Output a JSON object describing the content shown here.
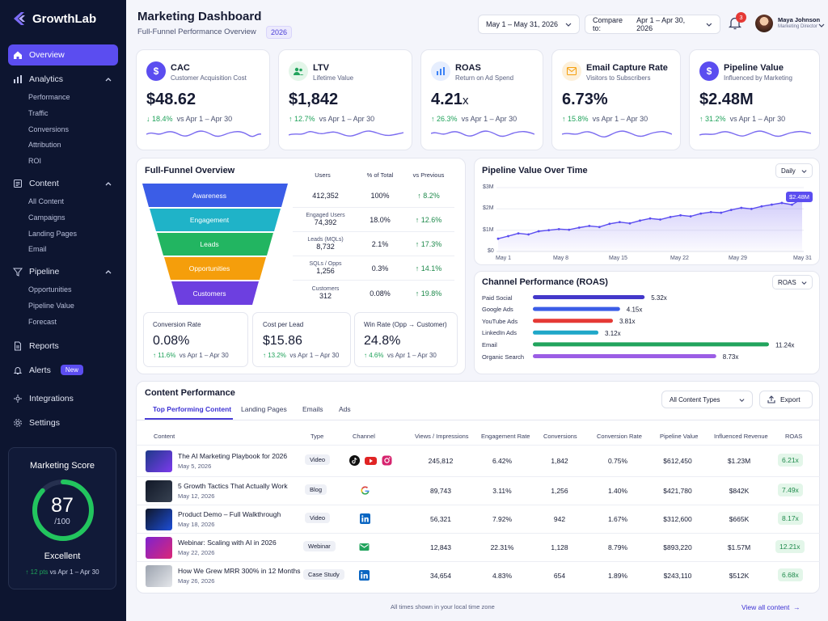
{
  "brand": {
    "name": "GrowthLab",
    "accent": "#5b4df0",
    "sidebar_bg": "#0d1530"
  },
  "sidebar": {
    "overview": "Overview",
    "analytics": {
      "label": "Analytics",
      "items": [
        "Performance",
        "Traffic",
        "Conversions",
        "Attribution",
        "ROI"
      ]
    },
    "content": {
      "label": "Content",
      "items": [
        "All Content",
        "Campaigns",
        "Landing Pages",
        "Email"
      ]
    },
    "pipeline": {
      "label": "Pipeline",
      "items": [
        "Opportunities",
        "Pipeline Value",
        "Forecast"
      ]
    },
    "reports": "Reports",
    "alerts": "Alerts",
    "alerts_badge": "New",
    "integrations": "Integrations",
    "settings": "Settings",
    "score": {
      "title": "Marketing Score",
      "value": "87",
      "denominator": "/100",
      "fraction": 0.87,
      "label": "Excellent",
      "delta": "12 pts",
      "delta_suffix": "vs Apr 1 – Apr 30"
    }
  },
  "header": {
    "title": "Marketing Dashboard",
    "subtitle": "Full-Funnel Performance Overview",
    "year": "2026",
    "date_range": "May 1 – May 31, 2026",
    "compare_label": "Compare to:",
    "compare_range": "Apr 1 – Apr 30, 2026",
    "notifications": "3",
    "user_name": "Maya Johnson",
    "user_role": "Marketing Director"
  },
  "kpis": [
    {
      "title": "CAC",
      "subtitle": "Customer Acquisition Cost",
      "value": "$48.62",
      "delta": "18.4%",
      "compare": "vs Apr 1 – Apr 30",
      "icon": "dollar-icon",
      "color": "#5b4df0"
    },
    {
      "title": "LTV",
      "subtitle": "Lifetime Value",
      "value": "$1,842",
      "delta": "12.7%",
      "compare": "vs Apr 1 – Apr 30",
      "icon": "users-icon",
      "color": "#22a45d"
    },
    {
      "title": "ROAS",
      "subtitle": "Return on Ad Spend",
      "value": "4.21",
      "value_suffix": "x",
      "delta": "26.3%",
      "compare": "vs Apr 1 – Apr 30",
      "icon": "bar-chart-icon",
      "color": "#3b82f6"
    },
    {
      "title": "Email Capture Rate",
      "subtitle": "Visitors to Subscribers",
      "value": "6.73%",
      "delta": "15.8%",
      "compare": "vs Apr 1 – Apr 30",
      "icon": "mail-icon",
      "color": "#f59e0b"
    },
    {
      "title": "Pipeline Value",
      "subtitle": "Influenced by Marketing",
      "value": "$2.48M",
      "delta": "31.2%",
      "compare": "vs Apr 1 – Apr 30",
      "icon": "dollar-icon",
      "color": "#5b4df0"
    }
  ],
  "funnel": {
    "title": "Full-Funnel Overview",
    "columns": [
      "Users",
      "% of Total",
      "vs Previous"
    ],
    "stages": [
      {
        "name": "Awareness",
        "sub": "",
        "users": "412,352",
        "pct": "100%",
        "delta": "8.2%",
        "color": "#3b5de7"
      },
      {
        "name": "Engagement",
        "sub": "Engaged Users",
        "users": "74,392",
        "pct": "18.0%",
        "delta": "12.6%",
        "color": "#1fb3c8"
      },
      {
        "name": "Leads",
        "sub": "Leads (MQLs)",
        "users": "8,732",
        "pct": "2.1%",
        "delta": "17.3%",
        "color": "#22b561"
      },
      {
        "name": "Opportunities",
        "sub": "SQLs / Opps",
        "users": "1,256",
        "pct": "0.3%",
        "delta": "14.1%",
        "color": "#f59e0b"
      },
      {
        "name": "Customers",
        "sub": "Customers",
        "users": "312",
        "pct": "0.08%",
        "delta": "19.8%",
        "color": "#6d3fe0"
      }
    ],
    "metrics": [
      {
        "label": "Conversion Rate",
        "value": "0.08%",
        "delta": "11.6%",
        "compare": "vs Apr 1 – Apr 30"
      },
      {
        "label": "Cost per Lead",
        "value": "$15.86",
        "delta": "13.2%",
        "compare": "vs Apr 1 – Apr 30"
      },
      {
        "label": "Win Rate (Opp → Customer)",
        "value": "24.8%",
        "delta": "4.6%",
        "compare": "vs Apr 1 – Apr 30"
      }
    ]
  },
  "pipeline_chart": {
    "title": "Pipeline Value Over Time",
    "granularity": "Daily",
    "y_ticks": [
      "$3M",
      "$2M",
      "$1M",
      "$0"
    ],
    "x_ticks": [
      "May 1",
      "May 8",
      "May 15",
      "May 22",
      "May 29",
      "May 31"
    ],
    "end_label": "$2.48M"
  },
  "channel_chart": {
    "title": "Channel Performance (ROAS)",
    "metric": "ROAS",
    "channels": [
      {
        "name": "Paid Social",
        "value": 5.32,
        "label": "5.32x",
        "color": "#4338ca"
      },
      {
        "name": "Google Ads",
        "value": 4.15,
        "label": "4.15x",
        "color": "#3b5de7"
      },
      {
        "name": "YouTube Ads",
        "value": 3.81,
        "label": "3.81x",
        "color": "#e53935"
      },
      {
        "name": "LinkedIn Ads",
        "value": 3.12,
        "label": "3.12x",
        "color": "#1fa7c8"
      },
      {
        "name": "Email",
        "value": 11.24,
        "label": "11.24x",
        "color": "#22a45d"
      },
      {
        "name": "Organic Search",
        "value": 8.73,
        "label": "8.73x",
        "color": "#9b5de5"
      }
    ]
  },
  "chart_data": [
    {
      "type": "line",
      "title": "Pipeline Value Over Time",
      "x": [
        "May 1",
        "May 2",
        "May 3",
        "May 4",
        "May 5",
        "May 6",
        "May 7",
        "May 8",
        "May 9",
        "May 10",
        "May 11",
        "May 12",
        "May 13",
        "May 14",
        "May 15",
        "May 16",
        "May 17",
        "May 18",
        "May 19",
        "May 20",
        "May 21",
        "May 22",
        "May 23",
        "May 24",
        "May 25",
        "May 26",
        "May 27",
        "May 28",
        "May 29",
        "May 30",
        "May 31"
      ],
      "values": [
        0.6,
        0.72,
        0.85,
        0.8,
        0.95,
        1.0,
        1.05,
        1.02,
        1.12,
        1.2,
        1.15,
        1.3,
        1.38,
        1.32,
        1.45,
        1.55,
        1.5,
        1.62,
        1.7,
        1.65,
        1.78,
        1.85,
        1.82,
        1.95,
        2.05,
        2.0,
        2.12,
        2.2,
        2.28,
        2.2,
        2.48
      ],
      "ylim": [
        0,
        3
      ],
      "yunit": "$M"
    },
    {
      "type": "bar",
      "title": "Channel Performance (ROAS)",
      "categories": [
        "Paid Social",
        "Google Ads",
        "YouTube Ads",
        "LinkedIn Ads",
        "Email",
        "Organic Search"
      ],
      "values": [
        5.32,
        4.15,
        3.81,
        3.12,
        11.24,
        8.73
      ]
    }
  ],
  "content_table": {
    "title": "Content Performance",
    "tabs": [
      "Top Performing Content",
      "Landing Pages",
      "Emails",
      "Ads"
    ],
    "filter": "All Content Types",
    "export": "Export",
    "headers": [
      "Content",
      "Type",
      "Channel",
      "Views / Impressions",
      "Engagement Rate",
      "Conversions",
      "Conversion Rate",
      "Pipeline Value",
      "Influenced Revenue",
      "ROAS"
    ],
    "rows": [
      {
        "title": "The AI Marketing Playbook for 2026",
        "date": "May 5, 2026",
        "type": "Video",
        "channels": [
          "tiktok-icon",
          "youtube-icon",
          "instagram-icon"
        ],
        "views": "245,812",
        "engagement": "6.42%",
        "conversions": "1,842",
        "conv_rate": "0.75%",
        "pipeline": "$612,450",
        "revenue": "$1.23M",
        "roas": "6.21x"
      },
      {
        "title": "5 Growth Tactics That Actually Work",
        "date": "May 12, 2026",
        "type": "Blog",
        "channels": [
          "google-icon"
        ],
        "views": "89,743",
        "engagement": "3.11%",
        "conversions": "1,256",
        "conv_rate": "1.40%",
        "pipeline": "$421,780",
        "revenue": "$842K",
        "roas": "7.49x"
      },
      {
        "title": "Product Demo – Full Walkthrough",
        "date": "May 18, 2026",
        "type": "Video",
        "channels": [
          "linkedin-icon"
        ],
        "views": "56,321",
        "engagement": "7.92%",
        "conversions": "942",
        "conv_rate": "1.67%",
        "pipeline": "$312,600",
        "revenue": "$665K",
        "roas": "8.17x"
      },
      {
        "title": "Webinar: Scaling with AI in 2026",
        "date": "May 22, 2026",
        "type": "Webinar",
        "channels": [
          "email-icon"
        ],
        "views": "12,843",
        "engagement": "22.31%",
        "conversions": "1,128",
        "conv_rate": "8.79%",
        "pipeline": "$893,220",
        "revenue": "$1.57M",
        "roas": "12.21x"
      },
      {
        "title": "How We Grew MRR 300% in 12 Months",
        "date": "May 26, 2026",
        "type": "Case Study",
        "channels": [
          "linkedin-icon"
        ],
        "views": "34,654",
        "engagement": "4.83%",
        "conversions": "654",
        "conv_rate": "1.89%",
        "pipeline": "$243,110",
        "revenue": "$512K",
        "roas": "6.68x"
      }
    ],
    "footer_note": "All times shown in your local time zone",
    "view_all": "View all content"
  }
}
